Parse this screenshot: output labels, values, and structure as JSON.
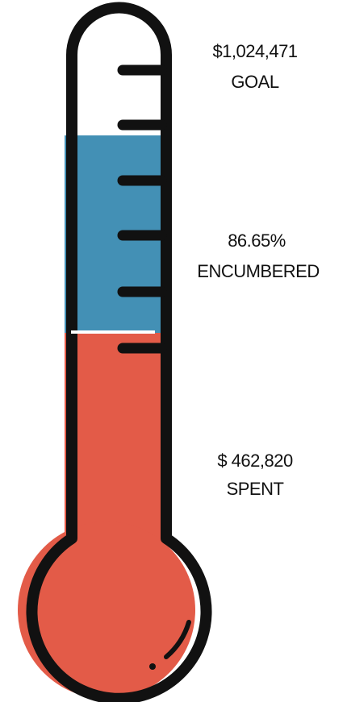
{
  "labels": {
    "goal_amount": "$1,024,471",
    "goal": "GOAL",
    "encumbered_percent": "86.65%",
    "encumbered": "ENCUMBERED",
    "spent_amount": "$ 462,820",
    "spent": "SPENT"
  }
}
